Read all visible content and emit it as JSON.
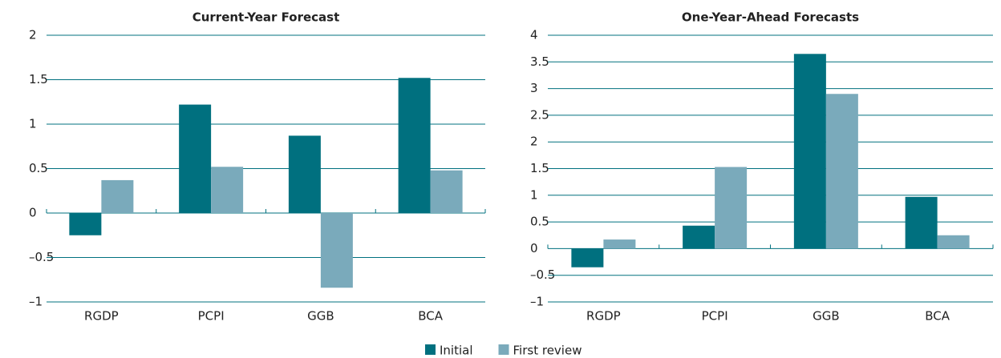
{
  "chart_data": [
    {
      "type": "bar",
      "title": "Current-Year Forecast",
      "categories": [
        "RGDP",
        "PCPI",
        "GGB",
        "BCA"
      ],
      "series": [
        {
          "name": "Initial",
          "color": "#00707f",
          "values": [
            -0.25,
            1.22,
            0.87,
            1.52
          ]
        },
        {
          "name": "First review",
          "color": "#7aaabb",
          "values": [
            0.37,
            0.52,
            -0.84,
            0.48
          ]
        }
      ],
      "ylim": [
        -1,
        2
      ],
      "yticks": [
        {
          "value": -1,
          "label": "–1"
        },
        {
          "value": -0.5,
          "label": "–0.5"
        },
        0,
        0.5,
        1,
        1.5,
        2
      ],
      "grid": true
    },
    {
      "type": "bar",
      "title": "One-Year-Ahead Forecasts",
      "categories": [
        "RGDP",
        "PCPI",
        "GGB",
        "BCA"
      ],
      "series": [
        {
          "name": "Initial",
          "color": "#00707f",
          "values": [
            -0.35,
            0.43,
            3.65,
            0.97
          ]
        },
        {
          "name": "First review",
          "color": "#7aaabb",
          "values": [
            0.17,
            1.53,
            2.9,
            0.25
          ]
        }
      ],
      "ylim": [
        -1,
        4
      ],
      "yticks": [
        {
          "value": -1,
          "label": "–1"
        },
        {
          "value": -0.5,
          "label": "–0.5"
        },
        0,
        0.5,
        1,
        1.5,
        2,
        2.5,
        3,
        3.5,
        4
      ],
      "grid": true
    }
  ]
}
